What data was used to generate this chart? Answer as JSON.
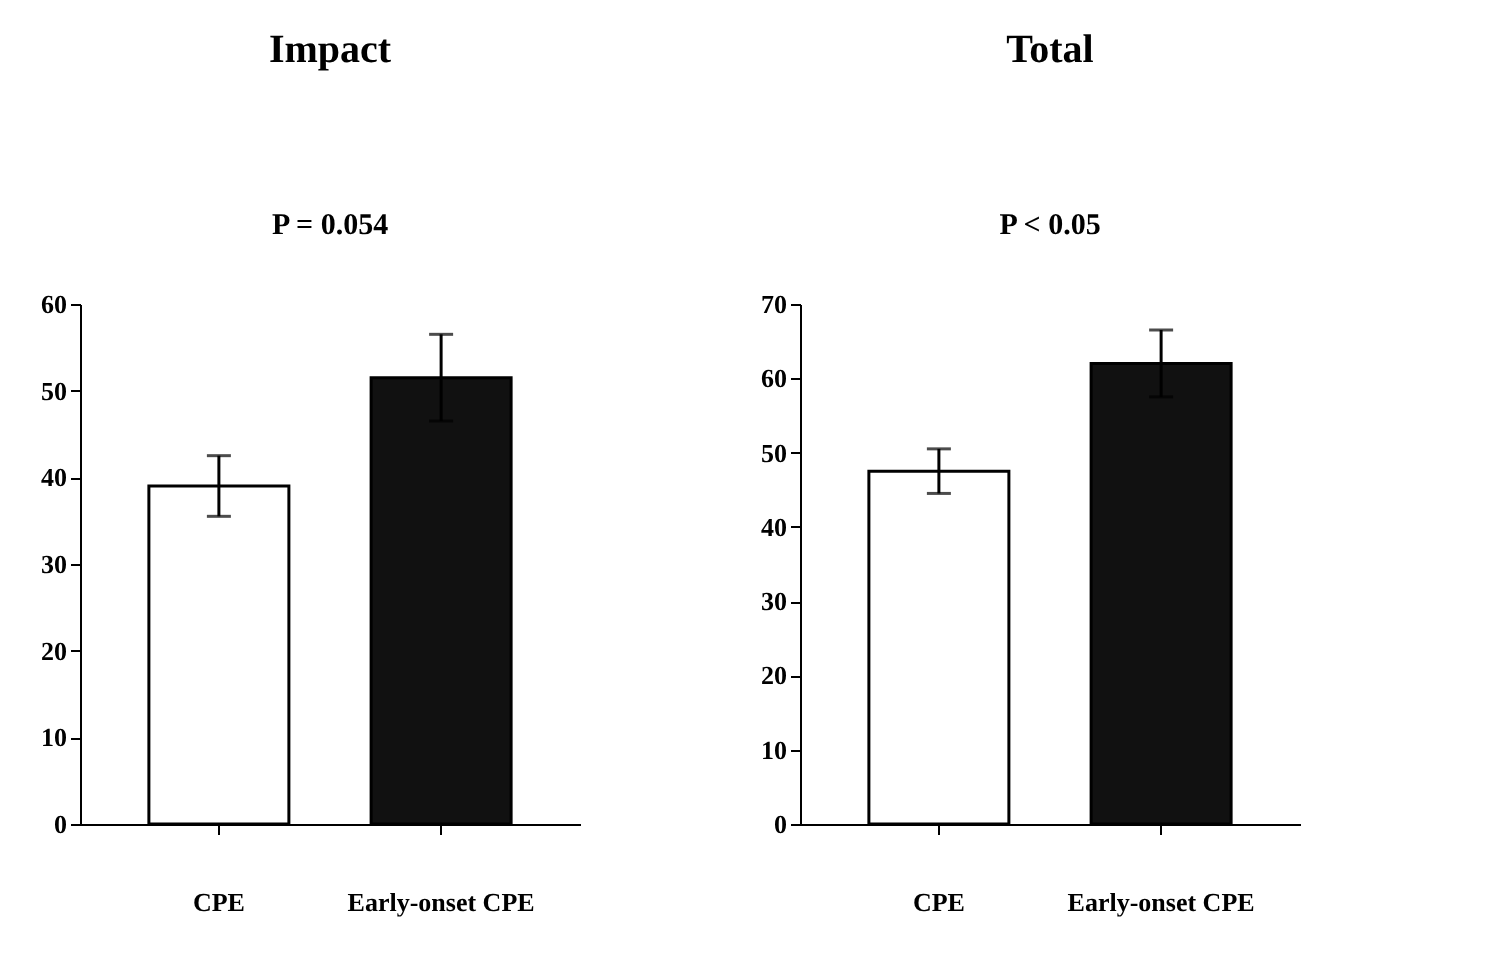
{
  "chart_data": [
    {
      "type": "bar",
      "title": "Impact",
      "categories": [
        "CPE",
        "Early-onset CPE"
      ],
      "values": [
        39,
        51.5
      ],
      "errors": [
        3.5,
        5
      ],
      "colors": [
        "#ffffff",
        "#111111"
      ],
      "ylim": [
        0,
        60
      ],
      "yticks": [
        0,
        10,
        20,
        30,
        40,
        50,
        60
      ],
      "grid": false,
      "annotations": [
        "P = 0.054"
      ]
    },
    {
      "type": "bar",
      "title": "Total",
      "categories": [
        "CPE",
        "Early-onset CPE"
      ],
      "values": [
        47.5,
        62
      ],
      "errors": [
        3,
        4.5
      ],
      "colors": [
        "#ffffff",
        "#111111"
      ],
      "ylim": [
        0,
        70
      ],
      "yticks": [
        0,
        10,
        20,
        30,
        40,
        50,
        60,
        70
      ],
      "grid": false,
      "annotations": [
        "P < 0.05"
      ]
    }
  ]
}
